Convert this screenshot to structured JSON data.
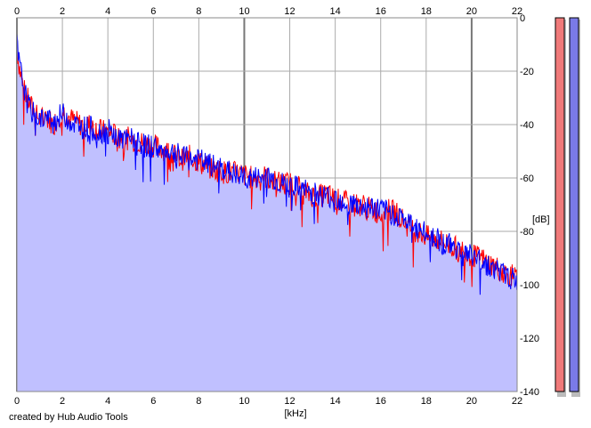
{
  "chart_data": {
    "type": "area",
    "xlabel": "[kHz]",
    "ylabel": "[dB]",
    "xlim": [
      0,
      22
    ],
    "ylim": [
      -140,
      0
    ],
    "x_ticks": [
      0,
      2,
      4,
      6,
      8,
      10,
      12,
      14,
      16,
      18,
      20,
      22
    ],
    "y_ticks": [
      0,
      -20,
      -40,
      -60,
      -80,
      -100,
      -120,
      -140
    ],
    "grid": true,
    "series": [
      {
        "color": "#ff0000",
        "x": [
          0,
          0.1,
          0.3,
          0.5,
          0.8,
          1.0,
          1.3,
          1.6,
          2.0,
          2.4,
          2.8,
          3.2,
          3.6,
          4.0,
          4.4,
          4.8,
          5.2,
          5.6,
          6.0,
          6.4,
          6.8,
          7.2,
          7.6,
          8.0,
          8.4,
          8.8,
          9.2,
          9.6,
          10.0,
          10.4,
          10.8,
          11.2,
          11.6,
          12.0,
          12.4,
          12.8,
          13.2,
          13.6,
          14.0,
          14.4,
          14.8,
          15.2,
          15.6,
          16.0,
          16.4,
          16.8,
          17.2,
          17.6,
          18.0,
          18.4,
          18.8,
          19.2,
          19.6,
          20.0,
          20.4,
          20.8,
          21.2,
          21.6,
          22.0
        ],
        "y": [
          -12,
          -18,
          -27,
          -31,
          -36,
          -38,
          -37,
          -40,
          -35,
          -38,
          -40,
          -40,
          -42,
          -43,
          -44,
          -45,
          -46,
          -47,
          -48,
          -49,
          -51,
          -53,
          -52,
          -54,
          -56,
          -57,
          -58,
          -58,
          -59,
          -60,
          -59,
          -61,
          -62,
          -62,
          -63,
          -66,
          -67,
          -66,
          -68,
          -69,
          -70,
          -70,
          -72,
          -73,
          -72,
          -74,
          -78,
          -80,
          -82,
          -83,
          -84,
          -86,
          -87,
          -89,
          -90,
          -92,
          -94,
          -96,
          -98
        ]
      },
      {
        "color": "#0000ff",
        "x": [
          0,
          0.1,
          0.3,
          0.5,
          0.8,
          1.0,
          1.3,
          1.6,
          2.0,
          2.4,
          2.8,
          3.2,
          3.6,
          4.0,
          4.4,
          4.8,
          5.2,
          5.6,
          6.0,
          6.4,
          6.8,
          7.2,
          7.6,
          8.0,
          8.4,
          8.8,
          9.2,
          9.6,
          10.0,
          10.4,
          10.8,
          11.2,
          11.6,
          12.0,
          12.4,
          12.8,
          13.2,
          13.6,
          14.0,
          14.4,
          14.8,
          15.2,
          15.6,
          16.0,
          16.4,
          16.8,
          17.2,
          17.6,
          18.0,
          18.4,
          18.8,
          19.2,
          19.6,
          20.0,
          20.4,
          20.8,
          21.2,
          21.6,
          22.0
        ],
        "y": [
          -10,
          -17,
          -26,
          -33,
          -37,
          -37,
          -38,
          -39,
          -36,
          -39,
          -41,
          -41,
          -43,
          -42,
          -45,
          -46,
          -45,
          -48,
          -48,
          -50,
          -50,
          -52,
          -53,
          -53,
          -55,
          -56,
          -57,
          -59,
          -60,
          -60,
          -60,
          -60,
          -62,
          -63,
          -64,
          -65,
          -66,
          -67,
          -67,
          -69,
          -70,
          -71,
          -71,
          -72,
          -73,
          -74,
          -77,
          -79,
          -81,
          -82,
          -85,
          -85,
          -88,
          -89,
          -91,
          -93,
          -95,
          -97,
          -99
        ]
      }
    ]
  },
  "level_meters": [
    {
      "color": "#f07a7a",
      "level": 1.0
    },
    {
      "color": "#7a7ae8",
      "level": 1.0
    }
  ],
  "credit": "created by Hub Audio Tools"
}
